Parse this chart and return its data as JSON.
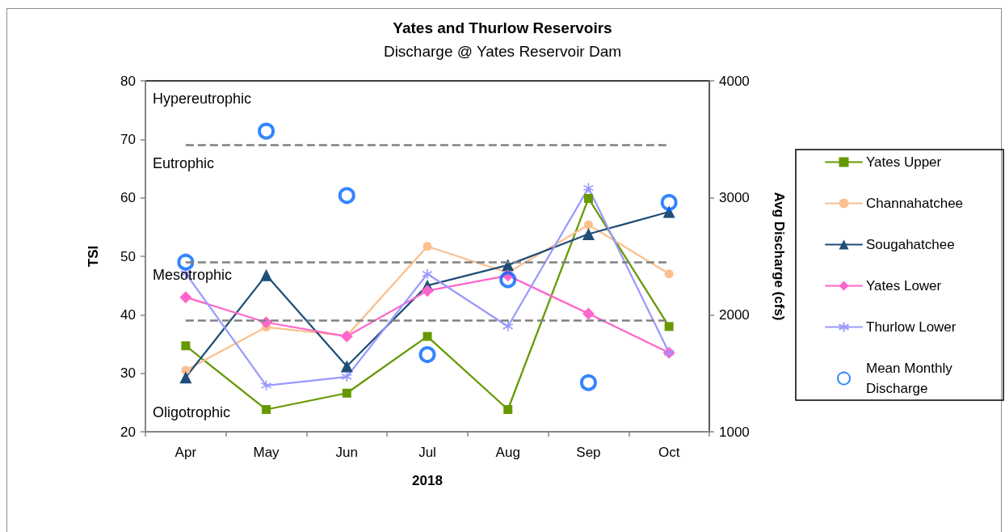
{
  "chart_data": {
    "type": "line",
    "title": "Yates and Thurlow Reservoirs",
    "subtitle": "Discharge @ Yates Reservoir Dam",
    "xlabel": "2018",
    "ylabel": "TSI",
    "y2label": "Avg Discharge (cfs)",
    "categories": [
      "Apr",
      "May",
      "Jun",
      "Jul",
      "Aug",
      "Sep",
      "Oct"
    ],
    "series": [
      {
        "name": "Yates Upper",
        "color": "#669900",
        "marker": "square",
        "values": [
          34.7,
          23.8,
          26.6,
          36.3,
          23.8,
          59.9,
          38.0
        ]
      },
      {
        "name": "Channahatchee",
        "color": "#fac090",
        "marker": "circle",
        "values": [
          30.5,
          37.9,
          36.4,
          51.7,
          47.2,
          55.4,
          47.0
        ]
      },
      {
        "name": "Sougahatchee",
        "color": "#1f4e79",
        "marker": "triangle",
        "values": [
          29.3,
          46.8,
          31.2,
          45.0,
          48.5,
          53.8,
          57.6
        ]
      },
      {
        "name": "Yates Lower",
        "color": "#ff66cc",
        "marker": "diamond",
        "values": [
          43.0,
          38.7,
          36.3,
          44.1,
          46.7,
          40.2,
          33.5
        ]
      },
      {
        "name": "Thurlow Lower",
        "color": "#9999ff",
        "marker": "cross",
        "values": [
          47.1,
          27.9,
          29.4,
          47.0,
          38.0,
          61.7,
          33.5
        ]
      },
      {
        "name": "Mean Monthly Discharge",
        "type": "scatter",
        "axis": "y2",
        "color": "#0066ff",
        "marker": "circle",
        "values": [
          2450,
          3570,
          3020,
          1660,
          2300,
          1420,
          2960
        ]
      }
    ],
    "ylim": [
      20,
      80
    ],
    "yticks": [
      20,
      30,
      40,
      50,
      60,
      70,
      80
    ],
    "y2lim": [
      1000,
      4000
    ],
    "y2ticks": [
      1000,
      2000,
      3000,
      4000
    ],
    "ref_lines": [
      {
        "axis": "y",
        "value": 69,
        "color": "#808080",
        "line_style": "dashed"
      },
      {
        "axis": "y",
        "value": 49,
        "color": "#808080",
        "line_style": "dashed"
      },
      {
        "axis": "y",
        "value": 39,
        "color": "#808080",
        "line_style": "dashed"
      }
    ],
    "annotations": [
      "Hypereutrophic",
      "Eutrophic",
      "Mesotrophic",
      "Oligotrophic"
    ],
    "legend": "right",
    "grid": false,
    "line_style": "solid"
  }
}
